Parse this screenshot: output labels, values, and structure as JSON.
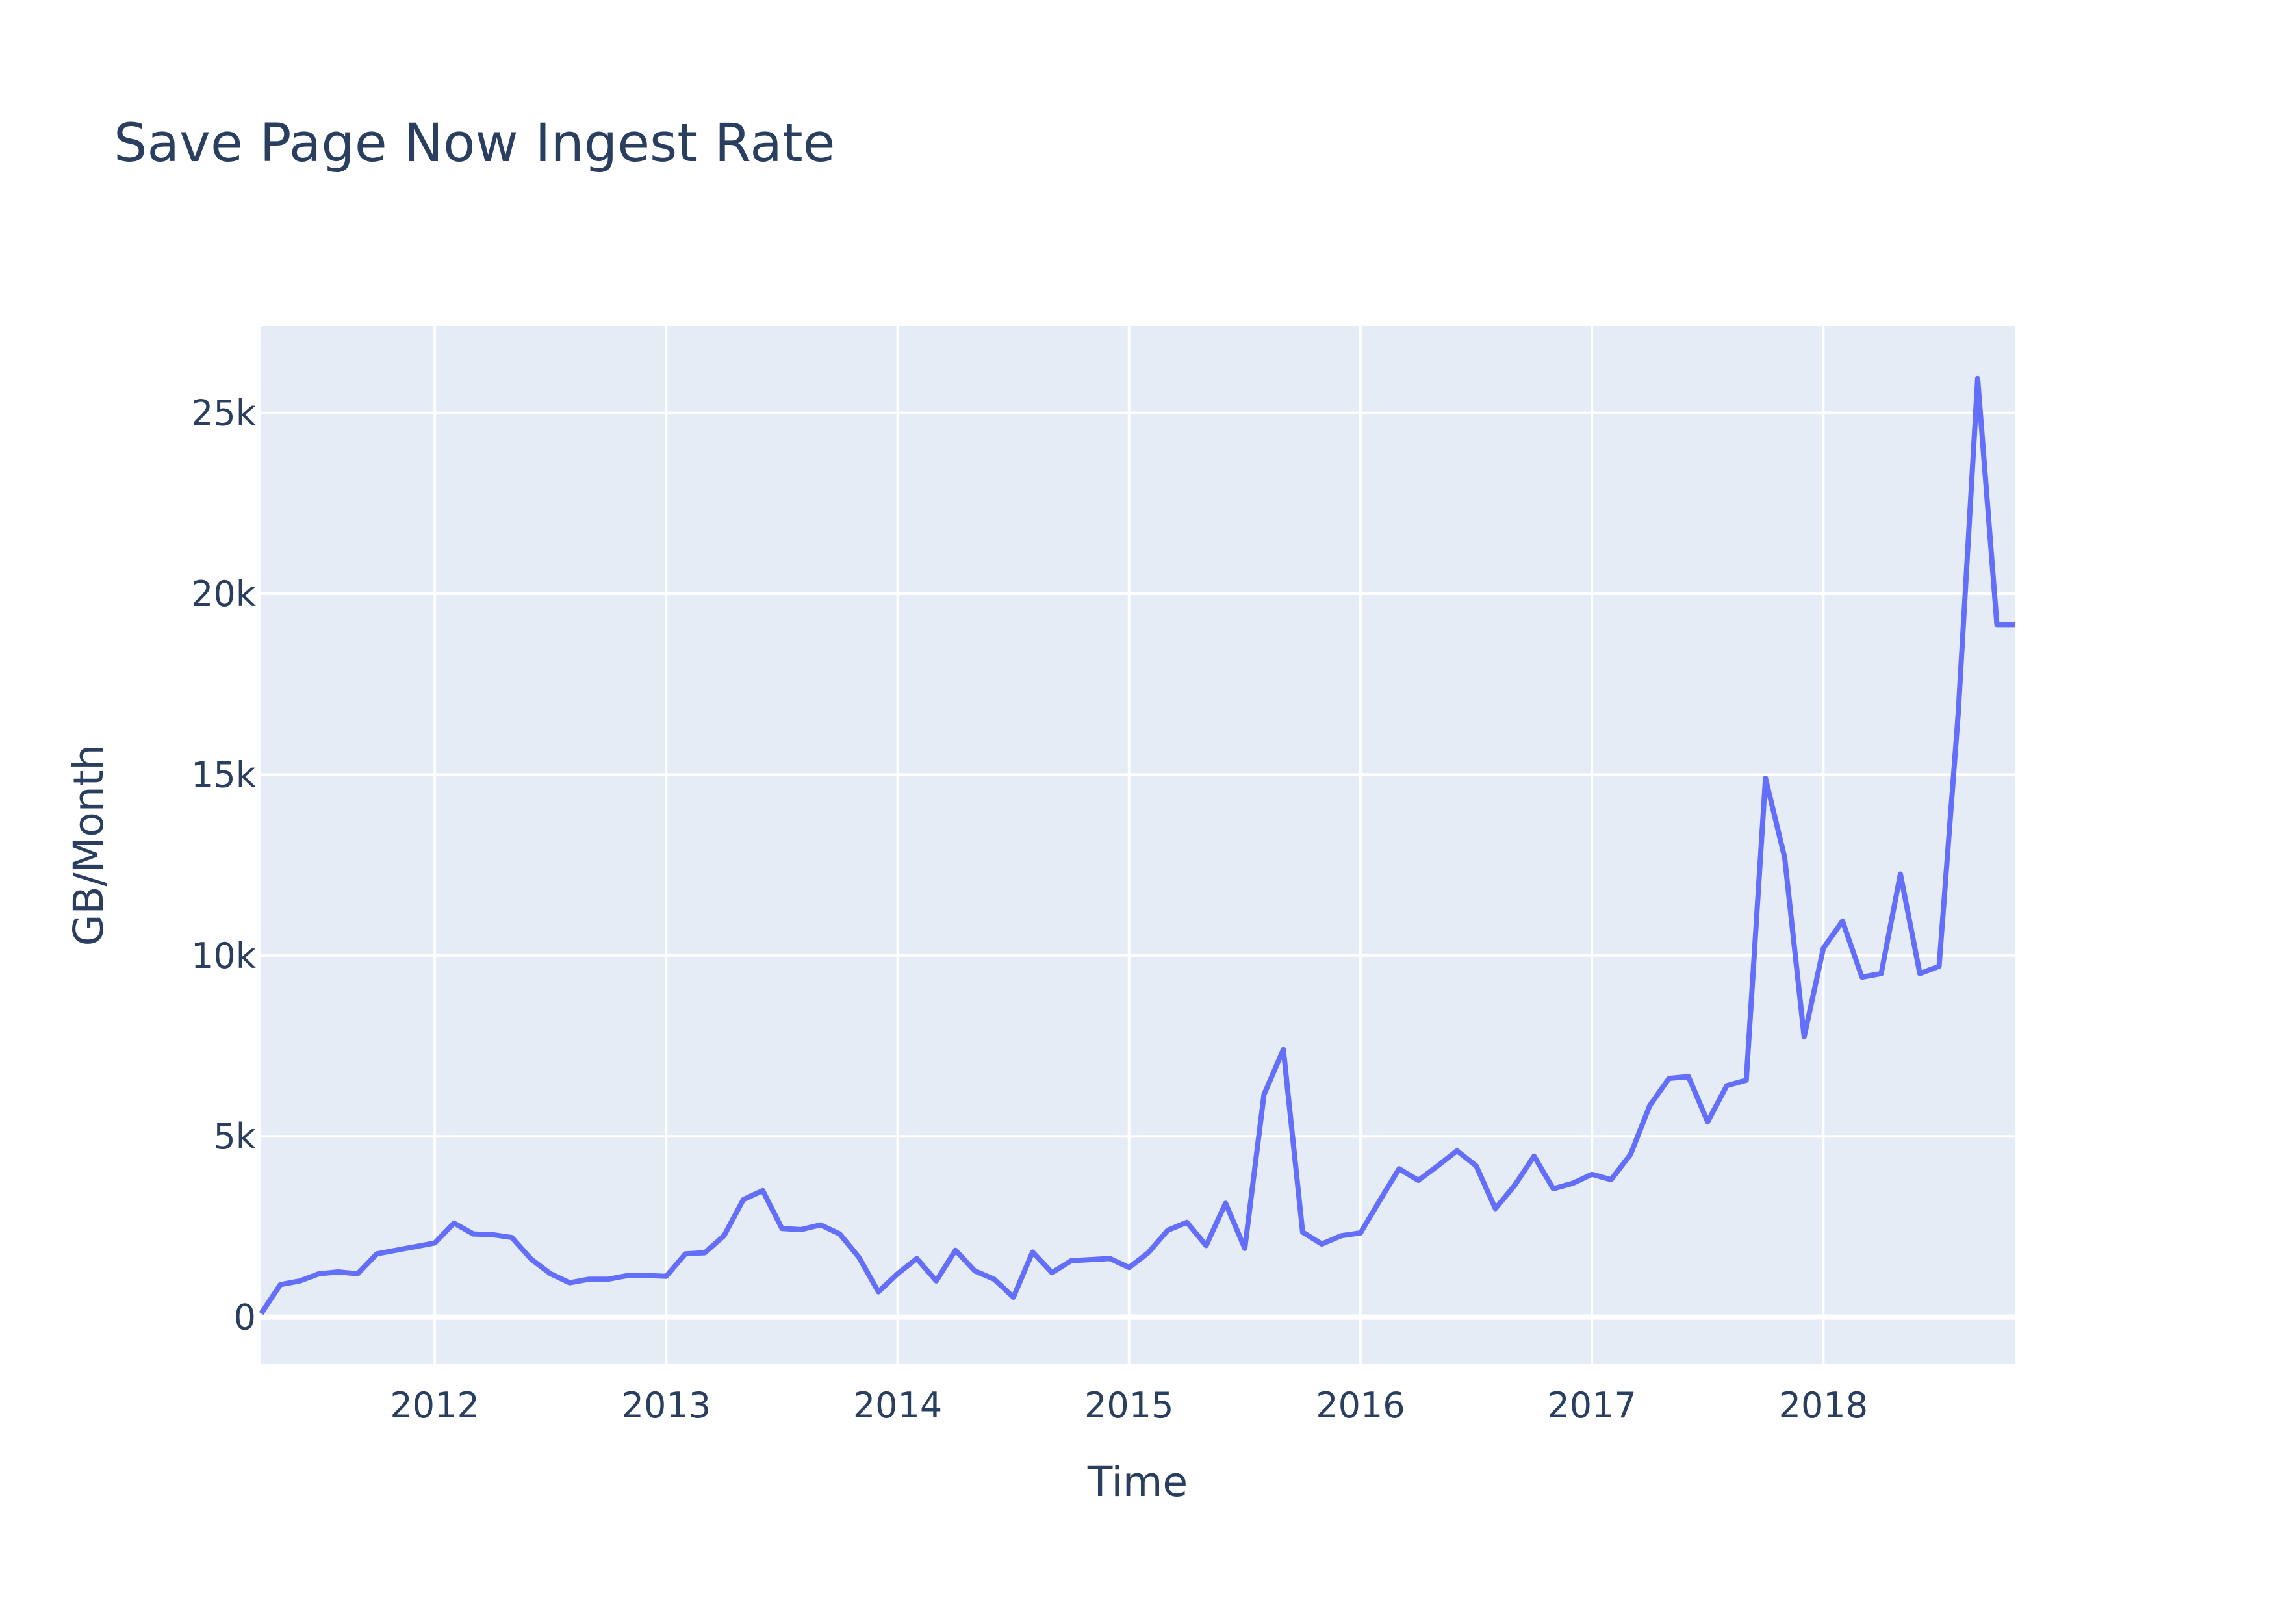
{
  "chart_data": {
    "type": "line",
    "title": "Save Page Now Ingest Rate",
    "xlabel": "Time",
    "ylabel": "GB/Month",
    "xlim": [
      2011.25,
      2018.83
    ],
    "ylim": [
      -1300,
      27400
    ],
    "x_ticks": [
      {
        "value": 2012,
        "label": "2012"
      },
      {
        "value": 2013,
        "label": "2013"
      },
      {
        "value": 2014,
        "label": "2014"
      },
      {
        "value": 2015,
        "label": "2015"
      },
      {
        "value": 2016,
        "label": "2016"
      },
      {
        "value": 2017,
        "label": "2017"
      },
      {
        "value": 2018,
        "label": "2018"
      }
    ],
    "y_ticks": [
      {
        "value": 0,
        "label": "0"
      },
      {
        "value": 5000,
        "label": "5k"
      },
      {
        "value": 10000,
        "label": "10k"
      },
      {
        "value": 15000,
        "label": "15k"
      },
      {
        "value": 20000,
        "label": "20k"
      },
      {
        "value": 25000,
        "label": "25k"
      }
    ],
    "grid": true,
    "colors": {
      "plot_background": "#e5ecf6",
      "grid": "#ffffff",
      "line": "#636efa",
      "text": "#2a3f5f"
    },
    "series": [
      {
        "name": "Ingest Rate",
        "x": [
          2011.25,
          2011.333,
          2011.417,
          2011.5,
          2011.583,
          2011.667,
          2011.75,
          2012.0,
          2012.083,
          2012.167,
          2012.25,
          2012.333,
          2012.417,
          2012.5,
          2012.583,
          2012.667,
          2012.75,
          2012.833,
          2012.917,
          2013.0,
          2013.083,
          2013.167,
          2013.25,
          2013.333,
          2013.417,
          2013.5,
          2013.583,
          2013.667,
          2013.75,
          2013.833,
          2013.917,
          2014.0,
          2014.083,
          2014.167,
          2014.25,
          2014.333,
          2014.417,
          2014.5,
          2014.583,
          2014.667,
          2014.75,
          2014.917,
          2015.0,
          2015.083,
          2015.167,
          2015.25,
          2015.333,
          2015.417,
          2015.5,
          2015.583,
          2015.667,
          2015.75,
          2015.833,
          2015.917,
          2016.0,
          2016.083,
          2016.167,
          2016.25,
          2016.333,
          2016.417,
          2016.5,
          2016.583,
          2016.667,
          2016.75,
          2016.833,
          2016.917,
          2017.0,
          2017.083,
          2017.167,
          2017.25,
          2017.333,
          2017.417,
          2017.5,
          2017.583,
          2017.667,
          2017.75,
          2017.833,
          2017.917,
          2018.0,
          2018.083,
          2018.167,
          2018.25,
          2018.333,
          2018.417,
          2018.5,
          2018.583,
          2018.667,
          2018.75,
          2018.83
        ],
        "values": [
          100,
          900,
          1000,
          1200,
          1250,
          1200,
          1750,
          2050,
          2600,
          2300,
          2280,
          2200,
          1600,
          1200,
          950,
          1050,
          1050,
          1150,
          1150,
          1130,
          1750,
          1780,
          2250,
          3250,
          3500,
          2450,
          2420,
          2550,
          2300,
          1650,
          700,
          1200,
          1620,
          1000,
          1850,
          1280,
          1050,
          550,
          1800,
          1230,
          1560,
          1620,
          1370,
          1780,
          2400,
          2620,
          1980,
          3150,
          1900,
          6150,
          7400,
          2350,
          2020,
          2250,
          2330,
          3220,
          4100,
          3780,
          4180,
          4600,
          4180,
          3000,
          3650,
          4450,
          3550,
          3700,
          3950,
          3800,
          4500,
          5850,
          6600,
          6650,
          5400,
          6400,
          6550,
          14900,
          12700,
          7750,
          10200,
          10950,
          9400,
          9500,
          12250,
          9500,
          9700,
          16700,
          25950,
          19150,
          19150
        ]
      }
    ]
  }
}
